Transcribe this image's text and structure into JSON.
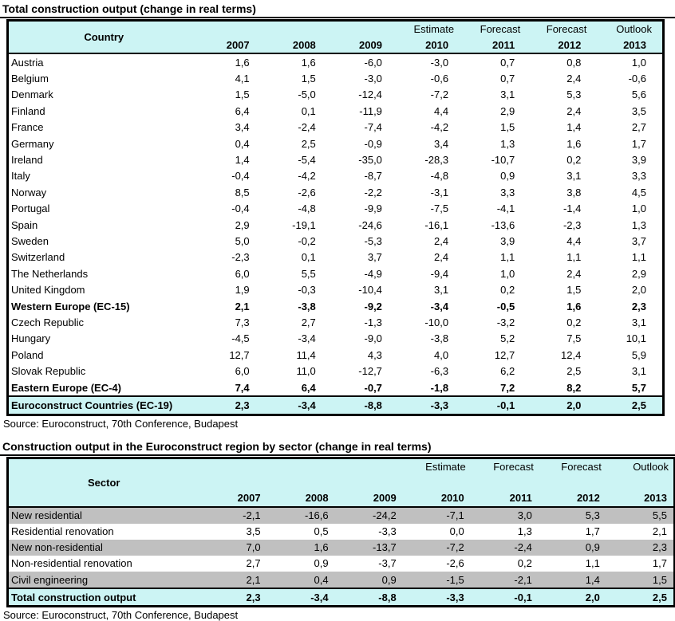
{
  "colors": {
    "header_bg": "#CCF4F4",
    "gray_row": "#C0C0C0",
    "border": "#000000"
  },
  "table1": {
    "title": "Total construction output (change in real terms)",
    "header": {
      "corner_label": "Country",
      "top_labels": [
        "",
        "",
        "",
        "Estimate",
        "Forecast",
        "Forecast",
        "Outlook"
      ],
      "years": [
        "2007",
        "2008",
        "2009",
        "2010",
        "2011",
        "2012",
        "2013"
      ]
    },
    "rows": [
      {
        "label": "Austria",
        "style": "normal",
        "values": [
          "1,6",
          "1,6",
          "-6,0",
          "-3,0",
          "0,7",
          "0,8",
          "1,0"
        ]
      },
      {
        "label": "Belgium",
        "style": "normal",
        "values": [
          "4,1",
          "1,5",
          "-3,0",
          "-0,6",
          "0,7",
          "2,4",
          "-0,6"
        ]
      },
      {
        "label": "Denmark",
        "style": "normal",
        "values": [
          "1,5",
          "-5,0",
          "-12,4",
          "-7,2",
          "3,1",
          "5,3",
          "5,6"
        ]
      },
      {
        "label": "Finland",
        "style": "normal",
        "values": [
          "6,4",
          "0,1",
          "-11,9",
          "4,4",
          "2,9",
          "2,4",
          "3,5"
        ]
      },
      {
        "label": "France",
        "style": "normal",
        "values": [
          "3,4",
          "-2,4",
          "-7,4",
          "-4,2",
          "1,5",
          "1,4",
          "2,7"
        ]
      },
      {
        "label": "Germany",
        "style": "normal",
        "values": [
          "0,4",
          "2,5",
          "-0,9",
          "3,4",
          "1,3",
          "1,6",
          "1,7"
        ]
      },
      {
        "label": "Ireland",
        "style": "normal",
        "values": [
          "1,4",
          "-5,4",
          "-35,0",
          "-28,3",
          "-10,7",
          "0,2",
          "3,9"
        ]
      },
      {
        "label": "Italy",
        "style": "normal",
        "values": [
          "-0,4",
          "-4,2",
          "-8,7",
          "-4,8",
          "0,9",
          "3,1",
          "3,3"
        ]
      },
      {
        "label": "Norway",
        "style": "normal",
        "values": [
          "8,5",
          "-2,6",
          "-2,2",
          "-3,1",
          "3,3",
          "3,8",
          "4,5"
        ]
      },
      {
        "label": "Portugal",
        "style": "normal",
        "values": [
          "-0,4",
          "-4,8",
          "-9,9",
          "-7,5",
          "-4,1",
          "-1,4",
          "1,0"
        ]
      },
      {
        "label": "Spain",
        "style": "normal",
        "values": [
          "2,9",
          "-19,1",
          "-24,6",
          "-16,1",
          "-13,6",
          "-2,3",
          "1,3"
        ]
      },
      {
        "label": "Sweden",
        "style": "normal",
        "values": [
          "5,0",
          "-0,2",
          "-5,3",
          "2,4",
          "3,9",
          "4,4",
          "3,7"
        ]
      },
      {
        "label": "Switzerland",
        "style": "normal",
        "values": [
          "-2,3",
          "0,1",
          "3,7",
          "2,4",
          "1,1",
          "1,1",
          "1,1"
        ]
      },
      {
        "label": "The Netherlands",
        "style": "normal",
        "values": [
          "6,0",
          "5,5",
          "-4,9",
          "-9,4",
          "1,0",
          "2,4",
          "2,9"
        ]
      },
      {
        "label": "United Kingdom",
        "style": "normal",
        "values": [
          "1,9",
          "-0,3",
          "-10,4",
          "3,1",
          "0,2",
          "1,5",
          "2,0"
        ]
      },
      {
        "label": "Western Europe (EC-15)",
        "style": "bold",
        "values": [
          "2,1",
          "-3,8",
          "-9,2",
          "-3,4",
          "-0,5",
          "1,6",
          "2,3"
        ]
      },
      {
        "label": "Czech Republic",
        "style": "normal",
        "values": [
          "7,3",
          "2,7",
          "-1,3",
          "-10,0",
          "-3,2",
          "0,2",
          "3,1"
        ]
      },
      {
        "label": "Hungary",
        "style": "normal",
        "values": [
          "-4,5",
          "-3,4",
          "-9,0",
          "-3,8",
          "5,2",
          "7,5",
          "10,1"
        ]
      },
      {
        "label": "Poland",
        "style": "normal",
        "values": [
          "12,7",
          "11,4",
          "4,3",
          "4,0",
          "12,7",
          "12,4",
          "5,9"
        ]
      },
      {
        "label": "Slovak Republic",
        "style": "normal",
        "values": [
          "6,0",
          "11,0",
          "-12,7",
          "-6,3",
          "6,2",
          "2,5",
          "3,1"
        ]
      },
      {
        "label": "Eastern Europe (EC-4)",
        "style": "bold",
        "values": [
          "7,4",
          "6,4",
          "-0,7",
          "-1,8",
          "7,2",
          "8,2",
          "5,7"
        ]
      },
      {
        "label": "Euroconstruct Countries (EC-19)",
        "style": "total",
        "values": [
          "2,3",
          "-3,4",
          "-8,8",
          "-3,3",
          "-0,1",
          "2,0",
          "2,5"
        ]
      }
    ],
    "source": "Source: Euroconstruct, 70th Conference, Budapest"
  },
  "table2": {
    "title": "Construction output in the Euroconstruct region by sector (change in real terms)",
    "header": {
      "corner_label": "Sector",
      "top_labels": [
        "",
        "",
        "",
        "Estimate",
        "Forecast",
        "Forecast",
        "Outlook"
      ],
      "years": [
        "2007",
        "2008",
        "2009",
        "2010",
        "2011",
        "2012",
        "2013"
      ]
    },
    "rows": [
      {
        "label": "New residential",
        "style": "gray",
        "values": [
          "-2,1",
          "-16,6",
          "-24,2",
          "-7,1",
          "3,0",
          "5,3",
          "5,5"
        ]
      },
      {
        "label": "Residential renovation",
        "style": "normal",
        "values": [
          "3,5",
          "0,5",
          "-3,3",
          "0,0",
          "1,3",
          "1,7",
          "2,1"
        ]
      },
      {
        "label": "New non-residential",
        "style": "gray",
        "values": [
          "7,0",
          "1,6",
          "-13,7",
          "-7,2",
          "-2,4",
          "0,9",
          "2,3"
        ]
      },
      {
        "label": "Non-residential renovation",
        "style": "normal",
        "values": [
          "2,7",
          "0,9",
          "-3,7",
          "-2,6",
          "0,2",
          "1,1",
          "1,7"
        ]
      },
      {
        "label": "Civil engineering",
        "style": "gray",
        "values": [
          "2,1",
          "0,4",
          "0,9",
          "-1,5",
          "-2,1",
          "1,4",
          "1,5"
        ]
      },
      {
        "label": "Total construction output",
        "style": "total",
        "values": [
          "2,3",
          "-3,4",
          "-8,8",
          "-3,3",
          "-0,1",
          "2,0",
          "2,5"
        ]
      }
    ],
    "source": "Source: Euroconstruct, 70th Conference, Budapest"
  }
}
